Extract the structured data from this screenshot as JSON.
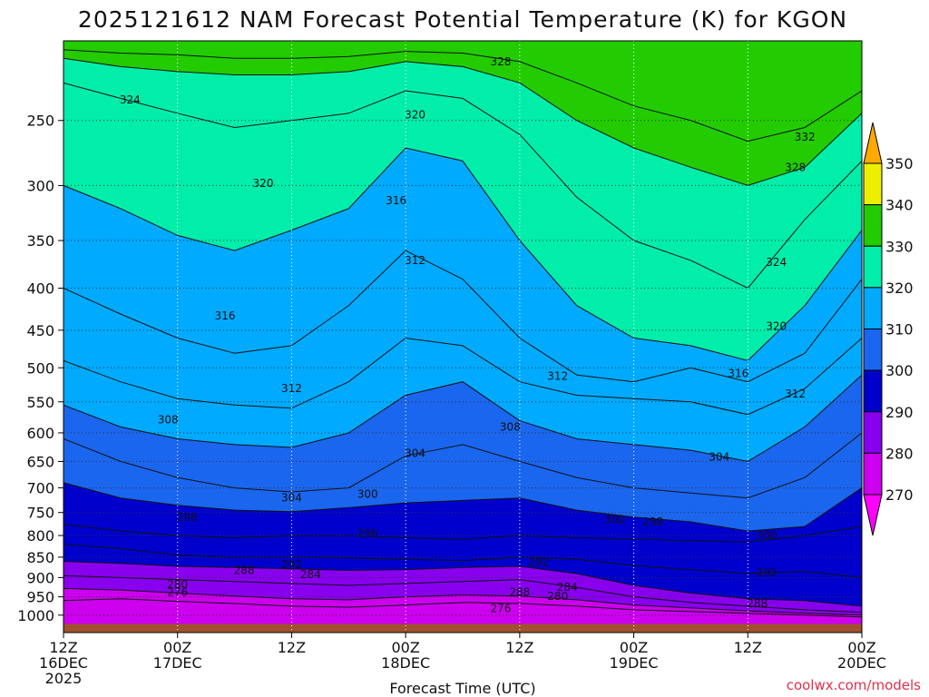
{
  "chart_data": {
    "type": "heatmap",
    "title": "2025121612 NAM Forecast Potential Temperature (K) for KGON",
    "xlabel": "Forecast Time (UTC)",
    "ylabel": "",
    "x_ticks": [
      {
        "hour": 0,
        "lines": [
          "12Z",
          "16DEC",
          "2025"
        ]
      },
      {
        "hour": 12,
        "lines": [
          "00Z",
          "17DEC"
        ]
      },
      {
        "hour": 24,
        "lines": [
          "12Z"
        ]
      },
      {
        "hour": 36,
        "lines": [
          "00Z",
          "18DEC"
        ]
      },
      {
        "hour": 48,
        "lines": [
          "12Z"
        ]
      },
      {
        "hour": 60,
        "lines": [
          "00Z",
          "19DEC"
        ]
      },
      {
        "hour": 72,
        "lines": [
          "12Z"
        ]
      },
      {
        "hour": 84,
        "lines": [
          "00Z",
          "20DEC"
        ]
      }
    ],
    "xlim": [
      0,
      84
    ],
    "y_scale": "log-pressure",
    "y_ticks": [
      250,
      300,
      350,
      400,
      450,
      500,
      550,
      600,
      650,
      700,
      750,
      800,
      850,
      900,
      950,
      1000
    ],
    "ylim": [
      1050,
      200
    ],
    "grid": true,
    "colorbar": {
      "levels": [
        270,
        280,
        290,
        300,
        310,
        320,
        330,
        340,
        350
      ],
      "labels": [
        "270",
        "280",
        "290",
        "300",
        "310",
        "320",
        "330",
        "340",
        "350"
      ],
      "colors": [
        "#ff00ff",
        "#cc00ee",
        "#8800ee",
        "#0000cc",
        "#1a66ee",
        "#00aaff",
        "#00eeaa",
        "#22cc00",
        "#eeee00",
        "#ffaa00"
      ]
    },
    "isentropes": [
      {
        "theta": 276,
        "p": [
          960,
          955,
          962,
          968,
          975,
          978,
          972,
          965,
          968,
          975,
          985,
          990,
          995,
          1000,
          1005
        ]
      },
      {
        "theta": 280,
        "p": [
          928,
          932,
          940,
          948,
          955,
          958,
          950,
          945,
          948,
          958,
          972,
          980,
          988,
          995,
          1000
        ]
      },
      {
        "theta": 284,
        "p": [
          895,
          900,
          905,
          910,
          915,
          920,
          915,
          910,
          905,
          925,
          950,
          965,
          975,
          985,
          992
        ]
      },
      {
        "theta": 288,
        "p": [
          860,
          865,
          872,
          875,
          878,
          882,
          880,
          875,
          872,
          890,
          920,
          940,
          955,
          960,
          975
        ]
      },
      {
        "theta": 292,
        "p": [
          820,
          830,
          845,
          850,
          850,
          852,
          855,
          858,
          850,
          855,
          870,
          880,
          890,
          885,
          900
        ]
      },
      {
        "theta": 296,
        "p": [
          775,
          790,
          800,
          805,
          800,
          800,
          805,
          808,
          800,
          805,
          808,
          812,
          815,
          800,
          780
        ]
      },
      {
        "theta": 300,
        "p": [
          690,
          720,
          735,
          745,
          748,
          740,
          730,
          725,
          720,
          745,
          760,
          770,
          790,
          780,
          700
        ]
      },
      {
        "theta": 304,
        "p": [
          610,
          650,
          680,
          700,
          708,
          700,
          640,
          620,
          650,
          680,
          700,
          710,
          720,
          680,
          600
        ]
      },
      {
        "theta": 308,
        "p": [
          555,
          590,
          610,
          620,
          625,
          600,
          540,
          520,
          580,
          610,
          620,
          630,
          650,
          590,
          510
        ]
      },
      {
        "theta": 312,
        "p": [
          490,
          520,
          545,
          555,
          560,
          520,
          460,
          470,
          520,
          540,
          545,
          550,
          570,
          530,
          460
        ]
      },
      {
        "theta": 316,
        "p": [
          400,
          430,
          460,
          480,
          470,
          420,
          360,
          390,
          460,
          510,
          520,
          500,
          520,
          480,
          390
        ]
      },
      {
        "theta": 320,
        "p": [
          300,
          320,
          345,
          360,
          340,
          320,
          270,
          280,
          350,
          420,
          460,
          470,
          490,
          420,
          340
        ]
      },
      {
        "theta": 324,
        "p": [
          225,
          235,
          245,
          255,
          250,
          245,
          230,
          235,
          260,
          310,
          350,
          370,
          400,
          330,
          280
        ]
      },
      {
        "theta": 328,
        "p": [
          210,
          215,
          218,
          220,
          220,
          218,
          212,
          215,
          225,
          250,
          270,
          285,
          300,
          285,
          245
        ]
      },
      {
        "theta": 332,
        "p": [
          205,
          207,
          208,
          210,
          210,
          209,
          206,
          207,
          212,
          225,
          240,
          250,
          265,
          255,
          230
        ]
      }
    ],
    "isentrope_hours": [
      0,
      6,
      12,
      18,
      24,
      30,
      36,
      42,
      48,
      54,
      60,
      66,
      72,
      78,
      84
    ],
    "contour_labels": [
      {
        "text": "324",
        "h": 7,
        "p": 236
      },
      {
        "text": "328",
        "h": 46,
        "p": 212
      },
      {
        "text": "320",
        "h": 37,
        "p": 246
      },
      {
        "text": "332",
        "h": 78,
        "p": 262
      },
      {
        "text": "320",
        "h": 21,
        "p": 298
      },
      {
        "text": "316",
        "h": 35,
        "p": 313
      },
      {
        "text": "328",
        "h": 77,
        "p": 285
      },
      {
        "text": "312",
        "h": 37,
        "p": 370
      },
      {
        "text": "324",
        "h": 75,
        "p": 372
      },
      {
        "text": "316",
        "h": 17,
        "p": 432
      },
      {
        "text": "320",
        "h": 75,
        "p": 445
      },
      {
        "text": "312",
        "h": 52,
        "p": 512
      },
      {
        "text": "316",
        "h": 71,
        "p": 508
      },
      {
        "text": "312",
        "h": 24,
        "p": 530
      },
      {
        "text": "312",
        "h": 77,
        "p": 538
      },
      {
        "text": "308",
        "h": 11,
        "p": 578
      },
      {
        "text": "308",
        "h": 47,
        "p": 590
      },
      {
        "text": "304",
        "h": 37,
        "p": 635
      },
      {
        "text": "304",
        "h": 69,
        "p": 642
      },
      {
        "text": "304",
        "h": 24,
        "p": 720
      },
      {
        "text": "300",
        "h": 32,
        "p": 712
      },
      {
        "text": "298",
        "h": 13,
        "p": 760
      },
      {
        "text": "300",
        "h": 58,
        "p": 765
      },
      {
        "text": "298",
        "h": 62,
        "p": 770
      },
      {
        "text": "296",
        "h": 32,
        "p": 795
      },
      {
        "text": "300",
        "h": 74,
        "p": 800
      },
      {
        "text": "292",
        "h": 24,
        "p": 868
      },
      {
        "text": "292",
        "h": 50,
        "p": 862
      },
      {
        "text": "288",
        "h": 19,
        "p": 882
      },
      {
        "text": "284",
        "h": 26,
        "p": 892
      },
      {
        "text": "292",
        "h": 74,
        "p": 888
      },
      {
        "text": "280",
        "h": 12,
        "p": 918
      },
      {
        "text": "276",
        "h": 12,
        "p": 938
      },
      {
        "text": "288",
        "h": 48,
        "p": 938
      },
      {
        "text": "284",
        "h": 53,
        "p": 925
      },
      {
        "text": "280",
        "h": 52,
        "p": 948
      },
      {
        "text": "288",
        "h": 73,
        "p": 968
      },
      {
        "text": "276",
        "h": 46,
        "p": 982
      }
    ],
    "ground": {
      "p": 1025
    }
  },
  "credit": "coolwx.com/models"
}
